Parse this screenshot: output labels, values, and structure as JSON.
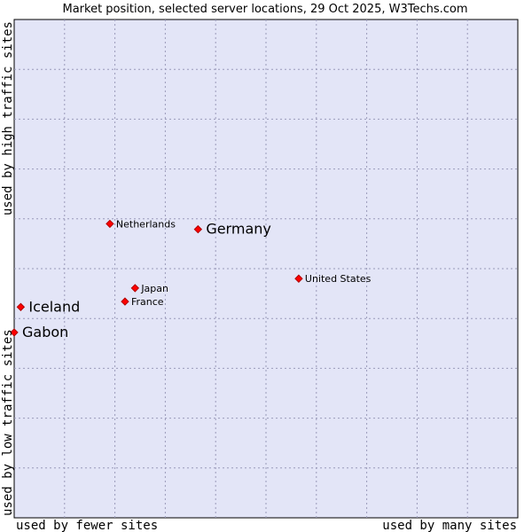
{
  "chart_data": {
    "type": "scatter",
    "title": "Market position, selected server locations, 29 Oct 2025, W3Techs.com",
    "xlabel_left": "used by fewer sites",
    "xlabel_right": "used by many sites",
    "ylabel_bottom": "used by low traffic sites",
    "ylabel_top": "used by high traffic sites",
    "xlim": [
      0,
      10
    ],
    "ylim": [
      0,
      10
    ],
    "grid": true,
    "colors": {
      "plot_background": "#e3e5f7",
      "grid": "#9a9aba",
      "marker": "#ff0000",
      "marker_edge": "#b00000"
    },
    "points": [
      {
        "label": "Netherlands",
        "x": 1.9,
        "y": 5.9,
        "emphasis": false
      },
      {
        "label": "Germany",
        "x": 3.65,
        "y": 5.79,
        "emphasis": true
      },
      {
        "label": "United States",
        "x": 5.65,
        "y": 4.8,
        "emphasis": false
      },
      {
        "label": "Japan",
        "x": 2.4,
        "y": 4.61,
        "emphasis": false
      },
      {
        "label": "France",
        "x": 2.2,
        "y": 4.34,
        "emphasis": false
      },
      {
        "label": "Iceland",
        "x": 0.13,
        "y": 4.23,
        "emphasis": true
      },
      {
        "label": "Gabon",
        "x": 0.0,
        "y": 3.72,
        "emphasis": true
      }
    ]
  }
}
